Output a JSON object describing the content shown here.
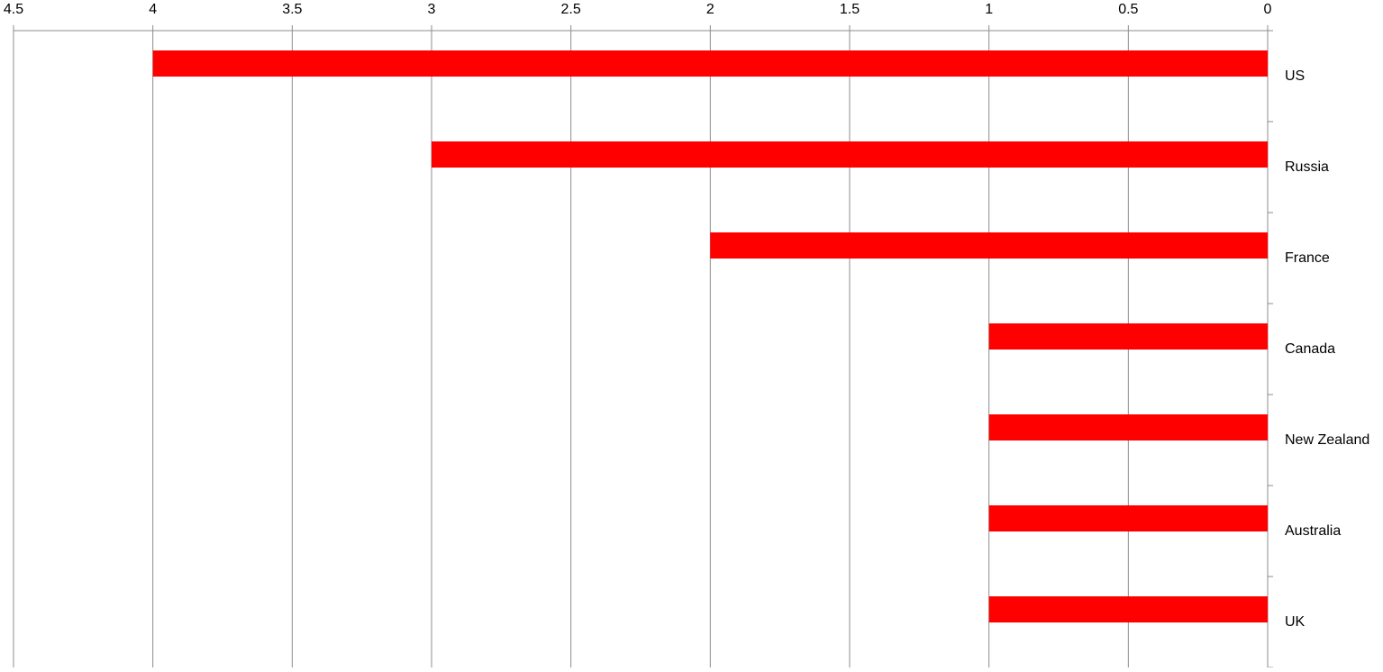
{
  "chart_data": {
    "type": "bar",
    "orientation": "horizontal",
    "x_reversed": true,
    "categories": [
      "US",
      "Russia",
      "France",
      "Canada",
      "New Zealand",
      "Australia",
      "UK"
    ],
    "values": [
      4,
      3,
      2,
      1,
      1,
      1,
      1
    ],
    "color": "#ff0000",
    "xlim": [
      0,
      4.5
    ],
    "xticks": [
      0,
      0.5,
      1,
      1.5,
      2,
      2.5,
      3,
      3.5,
      4,
      4.5
    ],
    "grid": true
  }
}
